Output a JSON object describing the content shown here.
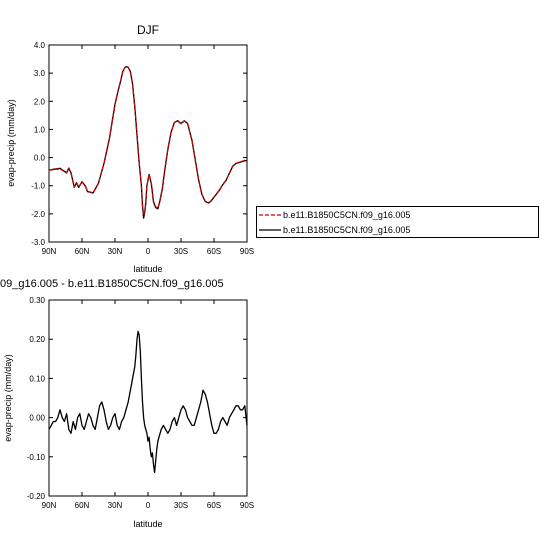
{
  "chart_data": [
    {
      "type": "line",
      "title": "DJF",
      "xlabel": "latitude",
      "ylabel": "evap-precip (mm/day)",
      "ylim": [
        -3.0,
        4.0
      ],
      "yticks": [
        "-3.0",
        "-2.0",
        "-1.0",
        "0.0",
        "1.0",
        "2.0",
        "3.0",
        "4.0"
      ],
      "yticks_values": [
        -3,
        -2,
        -1,
        0,
        1,
        2,
        3,
        4
      ],
      "xticks": [
        "90N",
        "60N",
        "30N",
        "0",
        "30S",
        "60S",
        "90S"
      ],
      "xticks_values": [
        90,
        60,
        30,
        0,
        -30,
        -60,
        -90
      ],
      "grid": false,
      "legend_position": "right",
      "series": [
        {
          "name": "b.e11.B1850C5CN.f09_g16.005",
          "color": "#cc0000",
          "dash": "dashed",
          "x": [
            90,
            80,
            74,
            72,
            70,
            67,
            65,
            63,
            60,
            57,
            55,
            50,
            45,
            40,
            35,
            30,
            27,
            25,
            23,
            21,
            20,
            18,
            16,
            14,
            12,
            10,
            8,
            6,
            5,
            4,
            3,
            2,
            1,
            0,
            -1,
            -3,
            -5,
            -7,
            -9,
            -11,
            -13,
            -15,
            -18,
            -21,
            -24,
            -27,
            -30,
            -33,
            -36,
            -40,
            -43,
            -46,
            -49,
            -52,
            -55,
            -57,
            -59,
            -62,
            -65,
            -68,
            -71,
            -74,
            -77,
            -80,
            -84,
            -88,
            -90
          ],
          "y": [
            -0.45,
            -0.4,
            -0.55,
            -0.38,
            -0.55,
            -1.05,
            -0.9,
            -1.05,
            -0.85,
            -1.0,
            -1.2,
            -1.25,
            -0.9,
            -0.2,
            0.7,
            1.9,
            2.4,
            2.7,
            3.05,
            3.2,
            3.22,
            3.2,
            3.05,
            2.6,
            1.8,
            0.8,
            -0.2,
            -1.0,
            -1.7,
            -2.05,
            -1.9,
            -1.6,
            -1.0,
            -0.8,
            -0.6,
            -0.9,
            -1.55,
            -1.75,
            -1.8,
            -1.5,
            -1.1,
            -0.5,
            0.3,
            0.9,
            1.25,
            1.3,
            1.2,
            1.3,
            1.2,
            0.6,
            -0.1,
            -0.8,
            -1.3,
            -1.55,
            -1.6,
            -1.55,
            -1.45,
            -1.3,
            -1.15,
            -0.95,
            -0.8,
            -0.55,
            -0.3,
            -0.2,
            -0.15,
            -0.1,
            -0.1
          ]
        },
        {
          "name": "b.e11.B1850C5CN.f09_g16.005",
          "color": "#000000",
          "dash": "solid",
          "x": [
            90,
            80,
            74,
            72,
            70,
            67,
            65,
            63,
            60,
            57,
            55,
            50,
            45,
            40,
            35,
            30,
            27,
            25,
            23,
            21,
            20,
            18,
            16,
            14,
            12,
            10,
            8,
            6,
            5,
            4,
            3,
            2,
            1,
            0,
            -1,
            -3,
            -5,
            -7,
            -9,
            -11,
            -13,
            -15,
            -18,
            -21,
            -24,
            -27,
            -30,
            -33,
            -36,
            -40,
            -43,
            -46,
            -49,
            -52,
            -55,
            -57,
            -59,
            -62,
            -65,
            -68,
            -71,
            -74,
            -77,
            -80,
            -84,
            -88,
            -90
          ],
          "y": [
            -0.44,
            -0.38,
            -0.54,
            -0.37,
            -0.54,
            -1.06,
            -0.89,
            -1.06,
            -0.86,
            -1.01,
            -1.21,
            -1.26,
            -0.91,
            -0.21,
            0.69,
            1.9,
            2.4,
            2.7,
            3.05,
            3.2,
            3.23,
            3.21,
            3.05,
            2.6,
            1.8,
            0.8,
            -0.2,
            -1.0,
            -1.72,
            -2.15,
            -1.95,
            -1.62,
            -1.0,
            -0.8,
            -0.6,
            -0.92,
            -1.58,
            -1.78,
            -1.82,
            -1.52,
            -1.12,
            -0.52,
            0.28,
            0.9,
            1.25,
            1.31,
            1.21,
            1.31,
            1.21,
            0.61,
            -0.09,
            -0.79,
            -1.31,
            -1.56,
            -1.61,
            -1.56,
            -1.46,
            -1.31,
            -1.16,
            -0.96,
            -0.81,
            -0.56,
            -0.31,
            -0.21,
            -0.16,
            -0.11,
            -0.11
          ]
        }
      ]
    },
    {
      "type": "line",
      "title": "09_g16.005 - b.e11.B1850C5CN.f09_g16.005",
      "xlabel": "latitude",
      "ylabel": "evap-precip (mm/day)",
      "ylim": [
        -0.2,
        0.3
      ],
      "yticks": [
        "-0.20",
        "-0.10",
        "0.00",
        "0.10",
        "0.20",
        "0.30"
      ],
      "yticks_values": [
        -0.2,
        -0.1,
        0,
        0.1,
        0.2,
        0.3
      ],
      "xticks": [
        "90N",
        "60N",
        "30N",
        "0",
        "30S",
        "60S",
        "90S"
      ],
      "xticks_values": [
        90,
        60,
        30,
        0,
        -30,
        -60,
        -90
      ],
      "grid": false,
      "series": [
        {
          "color": "#000000",
          "dash": "solid",
          "x": [
            90,
            88,
            86,
            84,
            82,
            80,
            78,
            76,
            74,
            72,
            70,
            68,
            66,
            64,
            62,
            60,
            58,
            56,
            54,
            52,
            50,
            48,
            46,
            44,
            42,
            40,
            38,
            36,
            34,
            32,
            30,
            28,
            26,
            24,
            22,
            20,
            18,
            16,
            14,
            12,
            11,
            10,
            9,
            8,
            7,
            6,
            5,
            4,
            3,
            2,
            1,
            0,
            -1,
            -2,
            -3,
            -4,
            -5,
            -6,
            -7,
            -8,
            -9,
            -10,
            -11,
            -12,
            -14,
            -16,
            -18,
            -20,
            -22,
            -24,
            -26,
            -28,
            -30,
            -32,
            -34,
            -36,
            -38,
            -40,
            -42,
            -44,
            -46,
            -48,
            -50,
            -52,
            -54,
            -56,
            -58,
            -60,
            -62,
            -64,
            -66,
            -68,
            -70,
            -72,
            -74,
            -76,
            -78,
            -80,
            -82,
            -84,
            -86,
            -88,
            -90
          ],
          "y": [
            -0.03,
            -0.02,
            -0.01,
            -0.01,
            0.0,
            0.02,
            0.0,
            -0.01,
            0.01,
            -0.03,
            -0.04,
            -0.01,
            -0.03,
            0.0,
            0.01,
            -0.02,
            -0.03,
            -0.01,
            0.01,
            0.0,
            -0.02,
            -0.03,
            0.0,
            0.03,
            0.04,
            0.02,
            -0.01,
            -0.03,
            -0.02,
            0.0,
            0.01,
            -0.02,
            -0.03,
            -0.01,
            0.0,
            0.02,
            0.04,
            0.07,
            0.1,
            0.13,
            0.16,
            0.2,
            0.22,
            0.21,
            0.17,
            0.1,
            0.04,
            0.0,
            -0.02,
            -0.03,
            -0.04,
            -0.06,
            -0.05,
            -0.08,
            -0.1,
            -0.09,
            -0.12,
            -0.14,
            -0.11,
            -0.08,
            -0.06,
            -0.05,
            -0.04,
            -0.03,
            -0.02,
            -0.03,
            -0.04,
            -0.03,
            -0.01,
            0.0,
            -0.02,
            0.0,
            0.02,
            0.03,
            0.02,
            0.0,
            -0.01,
            -0.02,
            -0.02,
            0.0,
            0.02,
            0.04,
            0.07,
            0.06,
            0.04,
            0.01,
            -0.02,
            -0.04,
            -0.04,
            -0.03,
            -0.01,
            0.0,
            -0.01,
            -0.02,
            0.0,
            0.01,
            0.02,
            0.03,
            0.03,
            0.02,
            0.02,
            0.03,
            -0.02
          ]
        }
      ]
    }
  ]
}
